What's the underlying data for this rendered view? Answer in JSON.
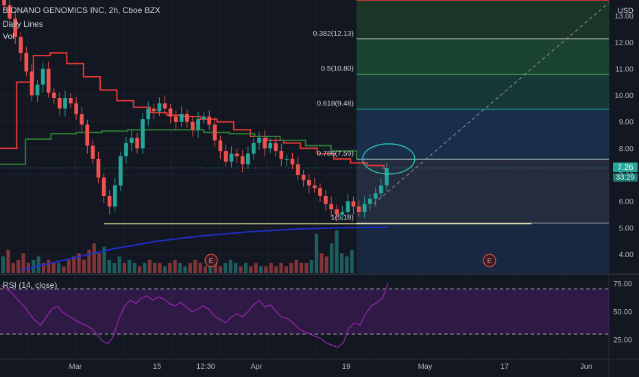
{
  "header": {
    "symbol": "BIONANO GENOMICS INC, 2h, Cboe BZX",
    "indicator_1": "Daily Lines",
    "indicator_2": "Vol",
    "currency": "USD"
  },
  "price_tag": {
    "value": "7.26",
    "countdown": "33:29"
  },
  "rsi_panel": {
    "label": "RSI (14, close)"
  },
  "earnings_marker": "E",
  "colors": {
    "background": "#131722",
    "grid": "#1e222d",
    "up": "#26a69a",
    "down": "#ef5350",
    "ma_red": "#e53935",
    "ma_green": "#2e7d32",
    "ma_blue": "#1f2fd1",
    "rsi": "#9c27b0",
    "fib_line": "#c9c9c9"
  },
  "chart_data": [
    {
      "type": "candlestick",
      "title": "BIONANO GENOMICS INC, 2h, Cboe BZX",
      "x_tick_labels": [
        "Mar",
        "15",
        "12:30",
        "Apr",
        "19",
        "May",
        "17",
        "Jun"
      ],
      "y_ticks": [
        4.0,
        5.0,
        6.0,
        7.0,
        8.0,
        9.0,
        10.0,
        11.0,
        12.0,
        13.0
      ],
      "ylim": [
        3.3,
        13.6
      ],
      "y_scale": "linear",
      "price_series_close": [
        13.4,
        12.9,
        12.2,
        11.6,
        10.9,
        10.0,
        10.4,
        11.0,
        10.1,
        9.9,
        9.5,
        9.9,
        9.7,
        9.3,
        8.9,
        8.1,
        7.6,
        6.9,
        6.2,
        5.8,
        6.6,
        7.7,
        8.2,
        8.4,
        8.0,
        9.1,
        9.5,
        9.4,
        9.7,
        9.5,
        9.2,
        9.0,
        9.3,
        9.0,
        8.7,
        9.1,
        9.2,
        8.9,
        8.3,
        7.9,
        7.5,
        7.8,
        7.7,
        7.4,
        7.8,
        8.2,
        8.4,
        8.0,
        8.2,
        7.9,
        7.6,
        7.6,
        7.4,
        7.0,
        6.8,
        6.6,
        6.5,
        6.2,
        5.9,
        5.7,
        5.5,
        5.6,
        6.0,
        5.8,
        5.6,
        5.9,
        6.1,
        6.3,
        6.6,
        7.26
      ],
      "ma_red_daily": [
        8.0,
        10.5,
        11.5,
        11.6,
        11.2,
        10.7,
        10.2,
        9.8,
        9.55,
        9.35,
        9.25,
        9.2,
        9.1,
        9.0,
        8.7,
        8.45,
        8.3,
        8.2,
        8.0,
        7.8,
        7.6,
        7.45,
        7.35,
        7.2
      ],
      "ma_green_daily": [
        7.4,
        8.35,
        8.55,
        8.6,
        8.65,
        8.7,
        8.7,
        8.7,
        8.6,
        8.55,
        8.45,
        8.3,
        8.1,
        7.9,
        7.6
      ],
      "ma_blue_daily": [
        3.4,
        3.8,
        4.2,
        4.5,
        4.7,
        4.85,
        4.95,
        5.0,
        5.02
      ],
      "horizontal_support": 5.15,
      "fibonacci": [
        {
          "label": "1(5.18)",
          "level": 5.18
        },
        {
          "label": "0.786(7.59)",
          "level": 7.59
        },
        {
          "label": "0.618(9.48)",
          "level": 9.48
        },
        {
          "label": "0.5(10.80)",
          "level": 10.8
        },
        {
          "label": "0.382(12.13)",
          "level": 12.13
        }
      ],
      "fib_top": 13.6,
      "last_price": 7.26
    },
    {
      "type": "bar",
      "title": "Vol",
      "values": [
        5,
        7,
        3,
        4,
        6,
        3,
        4,
        5,
        3,
        4,
        3,
        3,
        2,
        4,
        5,
        6,
        4,
        7,
        9,
        6,
        8,
        4,
        3,
        5,
        3,
        4,
        3,
        2,
        3,
        4,
        3,
        3,
        2,
        3,
        4,
        3,
        2,
        3,
        4,
        3,
        2,
        2,
        3,
        2,
        3,
        4,
        3,
        2,
        3,
        2,
        3,
        2,
        2,
        3,
        2,
        3,
        2,
        3,
        4,
        3,
        3,
        4,
        12,
        6,
        5,
        9,
        13,
        6,
        5,
        7
      ]
    },
    {
      "type": "line",
      "title": "RSI (14, close)",
      "y_ticks": [
        25.0,
        50.0,
        75.0
      ],
      "ylim": [
        10,
        82
      ],
      "bands": [
        30,
        70
      ],
      "values": [
        73,
        70,
        66,
        60,
        55,
        48,
        42,
        38,
        45,
        52,
        55,
        49,
        46,
        43,
        40,
        38,
        35,
        30,
        24,
        21,
        28,
        44,
        55,
        60,
        57,
        62,
        64,
        60,
        63,
        61,
        57,
        55,
        58,
        54,
        50,
        52,
        55,
        52,
        46,
        43,
        40,
        45,
        48,
        45,
        50,
        56,
        60,
        54,
        56,
        50,
        45,
        44,
        40,
        35,
        32,
        30,
        28,
        26,
        22,
        20,
        18,
        22,
        35,
        40,
        38,
        48,
        55,
        58,
        62,
        75
      ]
    }
  ]
}
